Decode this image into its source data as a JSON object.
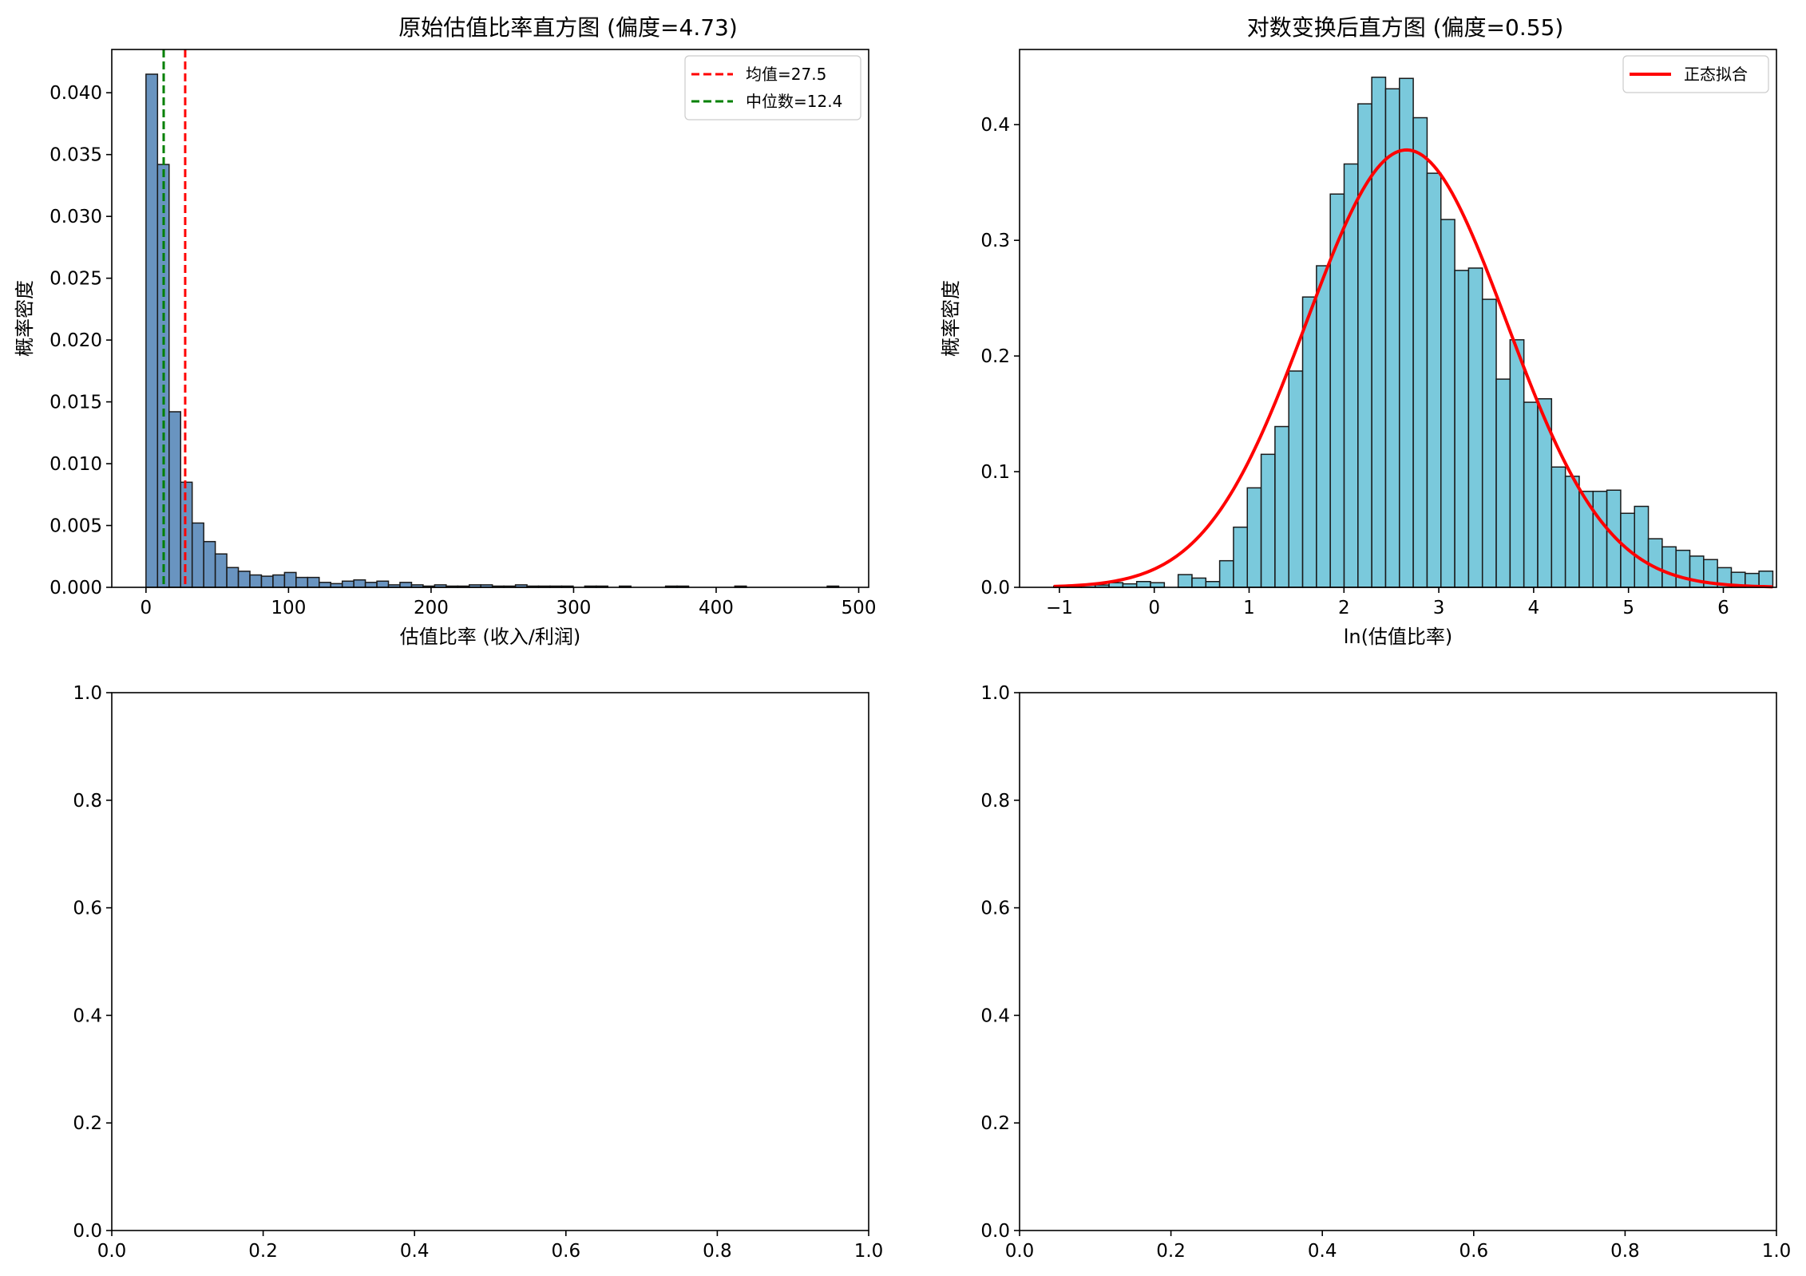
{
  "chart_data": [
    {
      "type": "bar",
      "title": "原始估值比率直方图 (偏度=4.73)",
      "xlabel": "估值比率 (收入/利润)",
      "ylabel": "概率密度",
      "xlim": [
        -24,
        507
      ],
      "ylim": [
        0,
        0.0435
      ],
      "xticks": [
        0,
        100,
        200,
        300,
        400,
        500
      ],
      "xtick_labels": [
        "0",
        "100",
        "200",
        "300",
        "400",
        "500"
      ],
      "yticks": [
        0,
        0.005,
        0.01,
        0.015,
        0.02,
        0.025,
        0.03,
        0.035,
        0.04
      ],
      "ytick_labels": [
        "0.000",
        "0.005",
        "0.010",
        "0.015",
        "0.020",
        "0.025",
        "0.030",
        "0.035",
        "0.040"
      ],
      "bin_start": 0,
      "bin_width": 8.1,
      "bar_color": "#4f81b5",
      "values": [
        0.0415,
        0.0342,
        0.0142,
        0.0085,
        0.0052,
        0.0037,
        0.0027,
        0.0016,
        0.0013,
        0.001,
        0.0009,
        0.001,
        0.0012,
        0.0008,
        0.0008,
        0.0004,
        0.0003,
        0.0005,
        0.0006,
        0.0004,
        0.0005,
        0.0002,
        0.0004,
        0.0002,
        0.0001,
        0.0002,
        0.0001,
        0.0001,
        0.0002,
        0.0002,
        0.0001,
        0.0001,
        0.0002,
        0.0001,
        0.0001,
        0.0001,
        0.0001,
        0.0,
        0.0001,
        0.0001,
        0.0,
        0.0001,
        0.0,
        0.0,
        0.0,
        0.0001,
        0.0001,
        0.0,
        0.0,
        0.0,
        0.0,
        0.0001,
        0.0,
        0.0,
        0.0,
        0.0,
        0.0,
        0.0,
        0.0,
        0.0001
      ],
      "vlines": [
        {
          "name": "均值=27.5",
          "x": 27.5,
          "color": "#ff0000"
        },
        {
          "name": "中位数=12.4",
          "x": 12.4,
          "color": "#008000"
        }
      ],
      "legend_position": "top-right",
      "grid": false
    },
    {
      "type": "bar",
      "title": "对数变换后直方图 (偏度=0.55)",
      "xlabel": "ln(估值比率)",
      "ylabel": "概率密度",
      "xlim": [
        -1.42,
        6.56
      ],
      "ylim": [
        0,
        0.465
      ],
      "xticks": [
        -1,
        0,
        1,
        2,
        3,
        4,
        5,
        6
      ],
      "xtick_labels": [
        "−1",
        "0",
        "1",
        "2",
        "3",
        "4",
        "5",
        "6"
      ],
      "yticks": [
        0,
        0.1,
        0.2,
        0.3,
        0.4
      ],
      "ytick_labels": [
        "0.0",
        "0.1",
        "0.2",
        "0.3",
        "0.4"
      ],
      "bin_start": -1.06,
      "bin_width": 0.1458,
      "bar_color": "#63bfd6",
      "values": [
        0.001,
        0.001,
        0.002,
        0.002,
        0.004,
        0.003,
        0.005,
        0.004,
        0.0,
        0.011,
        0.008,
        0.005,
        0.023,
        0.052,
        0.086,
        0.115,
        0.139,
        0.187,
        0.251,
        0.278,
        0.34,
        0.366,
        0.418,
        0.441,
        0.431,
        0.44,
        0.406,
        0.358,
        0.318,
        0.274,
        0.276,
        0.249,
        0.18,
        0.214,
        0.16,
        0.163,
        0.104,
        0.096,
        0.083,
        0.083,
        0.084,
        0.064,
        0.07,
        0.042,
        0.035,
        0.032,
        0.027,
        0.024,
        0.017,
        0.013,
        0.012,
        0.014
      ],
      "fit_curve": {
        "name": "正态拟合",
        "mean": 2.66,
        "std": 1.055,
        "x_range": [
          -1.06,
          6.52
        ],
        "color": "#ff0000"
      },
      "legend_position": "top-right",
      "grid": false
    },
    {
      "type": "scatter",
      "title": "",
      "xlim": [
        0,
        1
      ],
      "ylim": [
        0,
        1
      ],
      "xticks": [
        0,
        0.2,
        0.4,
        0.6,
        0.8,
        1.0
      ],
      "xtick_labels": [
        "0.0",
        "0.2",
        "0.4",
        "0.6",
        "0.8",
        "1.0"
      ],
      "yticks": [
        0,
        0.2,
        0.4,
        0.6,
        0.8,
        1.0
      ],
      "ytick_labels": [
        "0.0",
        "0.2",
        "0.4",
        "0.6",
        "0.8",
        "1.0"
      ],
      "series": []
    },
    {
      "type": "scatter",
      "title": "",
      "xlim": [
        0,
        1
      ],
      "ylim": [
        0,
        1
      ],
      "xticks": [
        0,
        0.2,
        0.4,
        0.6,
        0.8,
        1.0
      ],
      "xtick_labels": [
        "0.0",
        "0.2",
        "0.4",
        "0.6",
        "0.8",
        "1.0"
      ],
      "yticks": [
        0,
        0.2,
        0.4,
        0.6,
        0.8,
        1.0
      ],
      "ytick_labels": [
        "0.0",
        "0.2",
        "0.4",
        "0.6",
        "0.8",
        "1.0"
      ],
      "series": []
    }
  ]
}
